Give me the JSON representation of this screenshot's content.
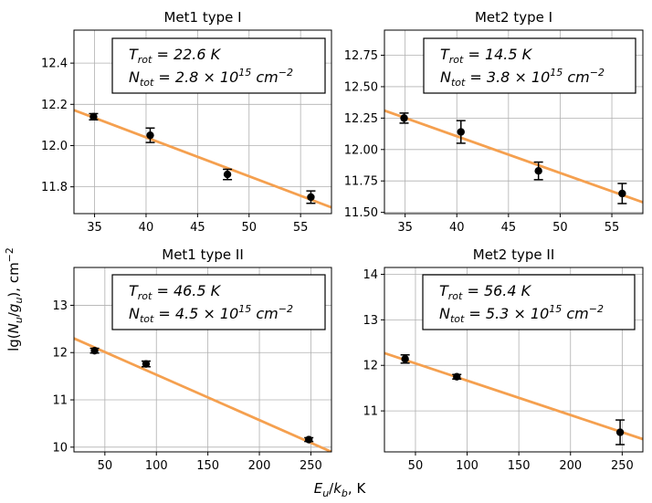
{
  "figure": {
    "ylabel": "lg(N_u/g_u), cm^-2",
    "xlabel": "E_u/k_b, K"
  },
  "colors": {
    "fit_line": "#f5a04f",
    "points": "#000000",
    "grid": "#b0b0b0"
  },
  "chart_data": [
    {
      "type": "scatter",
      "title": "Met1 type I",
      "xlim": [
        33,
        58
      ],
      "ylim": [
        11.67,
        12.56
      ],
      "xticks": [
        35,
        40,
        45,
        50,
        55
      ],
      "yticks": [
        11.8,
        12.0,
        12.2,
        12.4
      ],
      "ytick_labels": [
        "11.8",
        "12.0",
        "12.2",
        "12.4"
      ],
      "points": [
        {
          "x": 34.9,
          "y": 12.14,
          "err": 0.015
        },
        {
          "x": 40.4,
          "y": 12.05,
          "err": 0.035
        },
        {
          "x": 47.9,
          "y": 11.86,
          "err": 0.025
        },
        {
          "x": 56.0,
          "y": 11.75,
          "err": 0.03
        }
      ],
      "fit": {
        "x": [
          33,
          58
        ],
        "y": [
          12.172,
          11.7
        ]
      },
      "annotation": {
        "t_prefix": "T",
        "t_sub": "rot",
        "t_value": " = 22.6 K",
        "n_prefix": "N",
        "n_sub": "tot",
        "n_value": " = 2.8 × 10",
        "n_exp": "15",
        "n_unit": " cm",
        "n_unit_exp": "−2"
      }
    },
    {
      "type": "scatter",
      "title": "Met2 type I",
      "xlim": [
        33,
        58
      ],
      "ylim": [
        11.49,
        12.95
      ],
      "xticks": [
        35,
        40,
        45,
        50,
        55
      ],
      "yticks": [
        11.5,
        11.75,
        12.0,
        12.25,
        12.5,
        12.75
      ],
      "ytick_labels": [
        "11.50",
        "11.75",
        "12.00",
        "12.25",
        "12.50",
        "12.75"
      ],
      "points": [
        {
          "x": 34.9,
          "y": 12.25,
          "err": 0.04
        },
        {
          "x": 40.4,
          "y": 12.14,
          "err": 0.09
        },
        {
          "x": 47.9,
          "y": 11.83,
          "err": 0.07
        },
        {
          "x": 56.0,
          "y": 11.65,
          "err": 0.08
        }
      ],
      "fit": {
        "x": [
          33,
          58
        ],
        "y": [
          12.31,
          11.58
        ]
      },
      "annotation": {
        "t_prefix": "T",
        "t_sub": "rot",
        "t_value": " = 14.5 K",
        "n_prefix": "N",
        "n_sub": "tot",
        "n_value": " = 3.8 × 10",
        "n_exp": "15",
        "n_unit": " cm",
        "n_unit_exp": "−2"
      }
    },
    {
      "type": "scatter",
      "title": "Met1 type II",
      "xlim": [
        20,
        270
      ],
      "ylim": [
        9.9,
        13.8
      ],
      "xticks": [
        50,
        100,
        150,
        200,
        250
      ],
      "yticks": [
        10,
        11,
        12,
        13
      ],
      "ytick_labels": [
        "10",
        "11",
        "12",
        "13"
      ],
      "points": [
        {
          "x": 40,
          "y": 12.04,
          "err": 0.05
        },
        {
          "x": 90,
          "y": 11.76,
          "err": 0.06
        },
        {
          "x": 248,
          "y": 10.16,
          "err": 0.04
        }
      ],
      "fit": {
        "x": [
          20,
          270
        ],
        "y": [
          12.3,
          9.9
        ]
      },
      "annotation": {
        "t_prefix": "T",
        "t_sub": "rot",
        "t_value": " = 46.5 K",
        "n_prefix": "N",
        "n_sub": "tot",
        "n_value": " = 4.5 × 10",
        "n_exp": "15",
        "n_unit": " cm",
        "n_unit_exp": "−2"
      }
    },
    {
      "type": "scatter",
      "title": "Met2 type II",
      "xlim": [
        20,
        270
      ],
      "ylim": [
        10.1,
        14.15
      ],
      "xticks": [
        50,
        100,
        150,
        200,
        250
      ],
      "yticks": [
        11,
        12,
        13,
        14
      ],
      "ytick_labels": [
        "11",
        "12",
        "13",
        "14"
      ],
      "points": [
        {
          "x": 40,
          "y": 12.14,
          "err": 0.09
        },
        {
          "x": 90,
          "y": 11.75,
          "err": 0.05
        },
        {
          "x": 248,
          "y": 10.53,
          "err": 0.27
        }
      ],
      "fit": {
        "x": [
          20,
          270
        ],
        "y": [
          12.27,
          10.38
        ]
      },
      "annotation": {
        "t_prefix": "T",
        "t_sub": "rot",
        "t_value": " = 56.4 K",
        "n_prefix": "N",
        "n_sub": "tot",
        "n_value": " = 5.3 × 10",
        "n_exp": "15",
        "n_unit": " cm",
        "n_unit_exp": "−2"
      }
    }
  ]
}
